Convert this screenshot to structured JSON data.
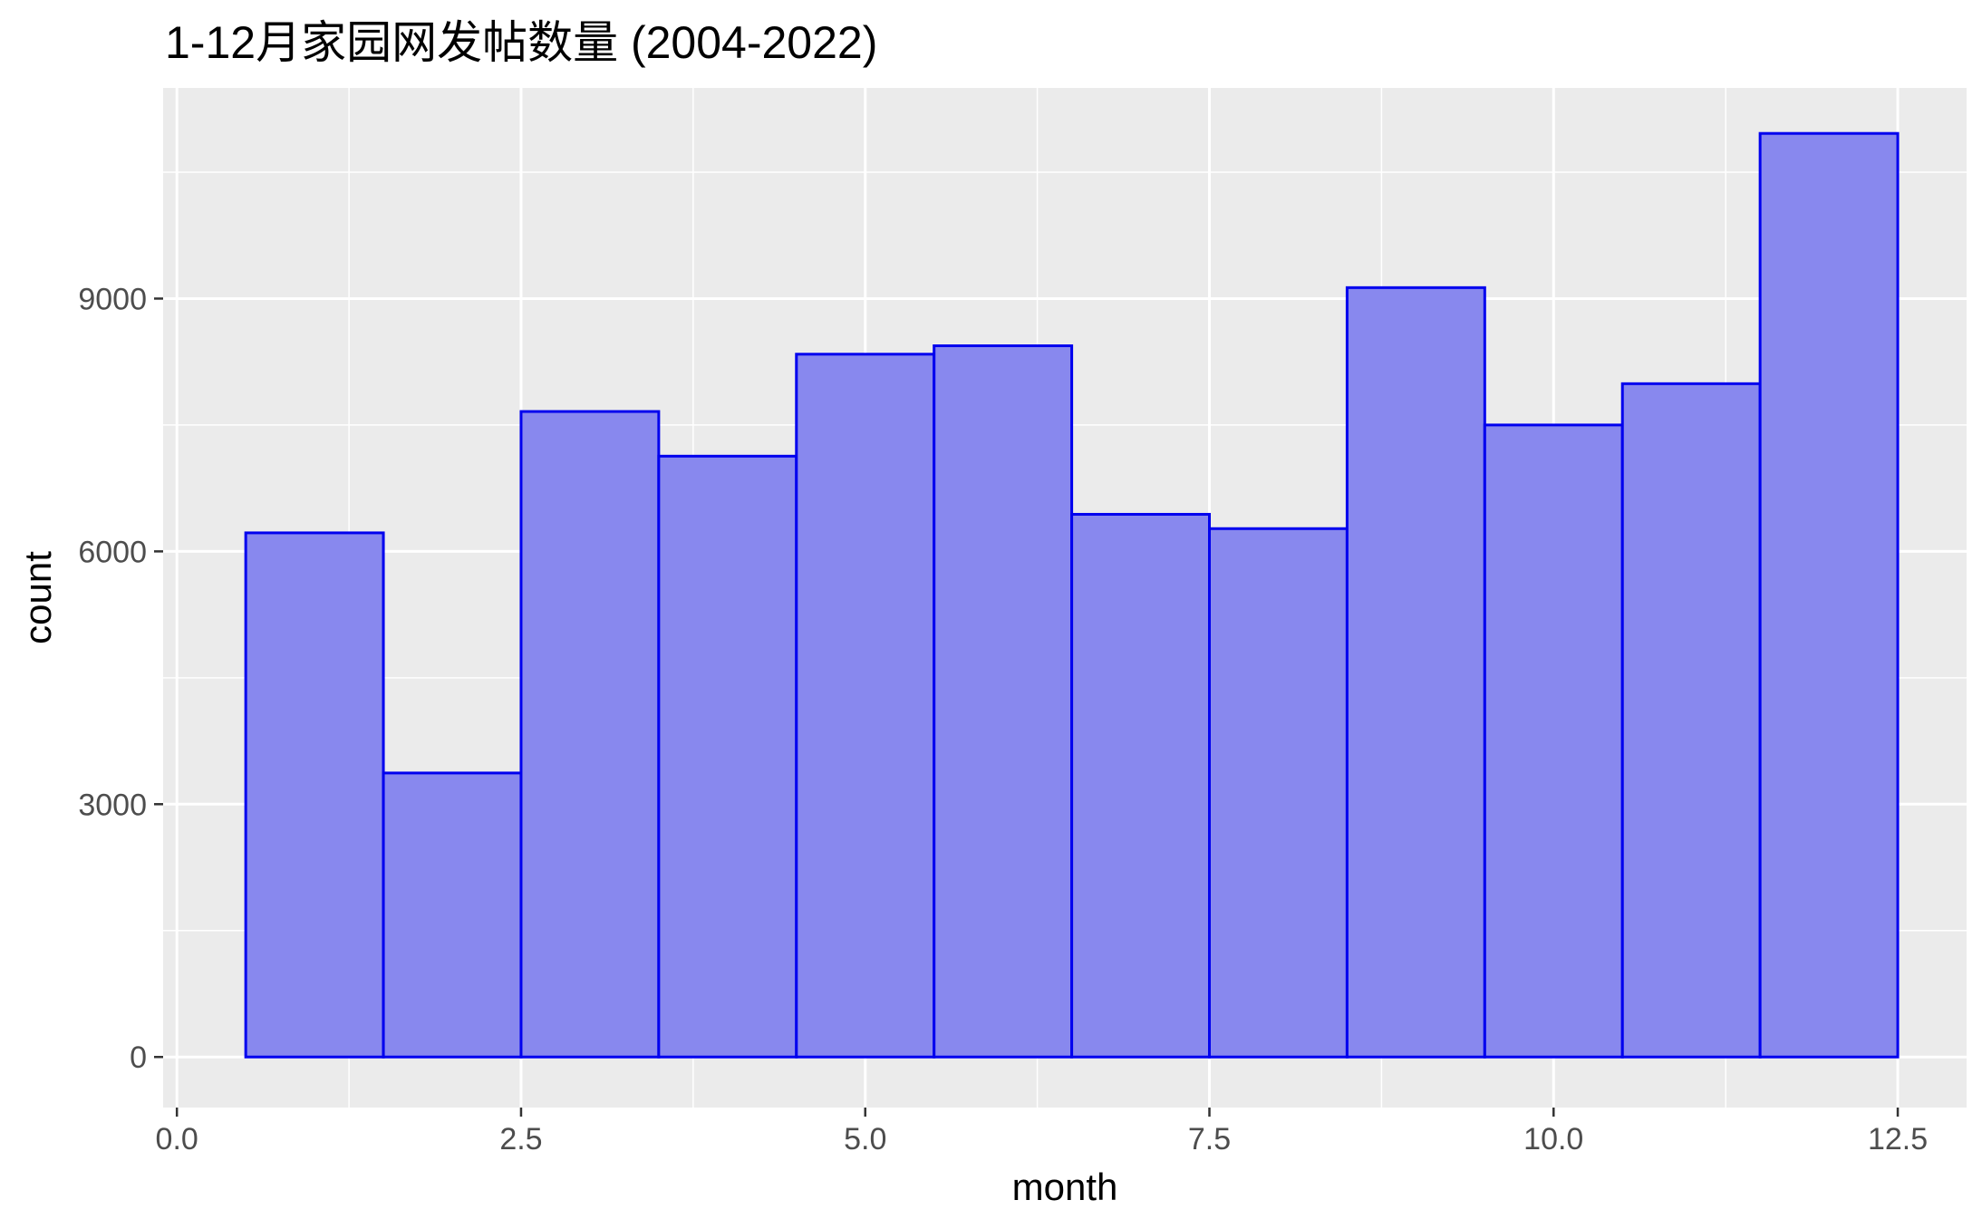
{
  "chart_data": {
    "type": "bar",
    "title": "1-12月家园网发帖数量 (2004-2022)",
    "xlabel": "month",
    "ylabel": "count",
    "xlim": [
      -0.1,
      13.0
    ],
    "ylim": [
      -600,
      11500
    ],
    "x_ticks": [
      0.0,
      2.5,
      5.0,
      7.5,
      10.0,
      12.5
    ],
    "x_tick_labels": [
      "0.0",
      "2.5",
      "5.0",
      "7.5",
      "10.0",
      "12.5"
    ],
    "x_minor_ticks": [
      1.25,
      3.75,
      6.25,
      8.75,
      11.25
    ],
    "y_ticks": [
      0,
      3000,
      6000,
      9000
    ],
    "y_tick_labels": [
      "0",
      "3000",
      "6000",
      "9000"
    ],
    "y_minor_ticks": [
      1500,
      4500,
      7500,
      10500
    ],
    "categories": [
      1,
      2,
      3,
      4,
      5,
      6,
      7,
      8,
      9,
      10,
      11,
      12
    ],
    "bin_width": 1,
    "values": [
      6220,
      3370,
      7660,
      7130,
      8340,
      8440,
      6440,
      6270,
      9130,
      7500,
      7990,
      10960
    ],
    "grid": true,
    "legend": "none",
    "colors": {
      "panel_background": "#ebebeb",
      "grid_line": "#ffffff",
      "bar_fill": "#8888ee",
      "bar_outline": "#0000ee",
      "tick_text": "#4d4d4d",
      "axis_tick": "#333333",
      "title_text": "#000000"
    }
  }
}
